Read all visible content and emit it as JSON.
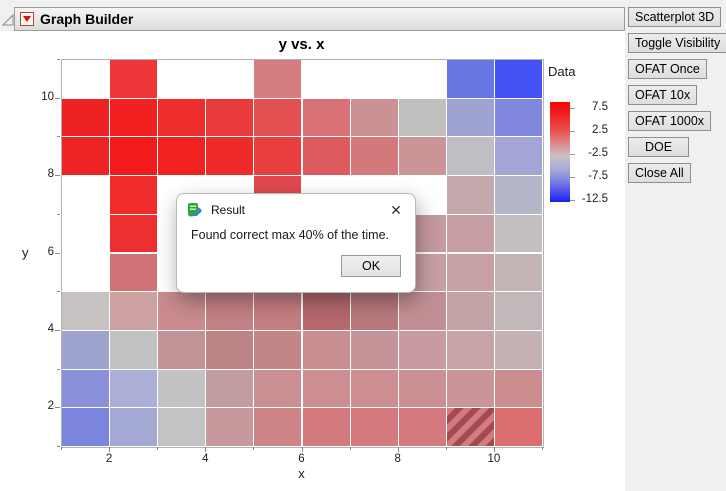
{
  "window": {
    "title": "Graph Builder",
    "side_buttons": [
      "Scatterplot 3D",
      "Toggle Visibility",
      "OFAT Once",
      "OFAT 10x",
      "OFAT 1000x",
      "DOE",
      "Close All"
    ]
  },
  "chart": {
    "title": "y vs. x",
    "xlabel": "x",
    "ylabel": "y",
    "x_ticks": [
      2,
      4,
      6,
      8,
      10
    ],
    "y_ticks": [
      2,
      4,
      6,
      8,
      10
    ]
  },
  "legend": {
    "title": "Data",
    "tick_labels": [
      "7.5",
      "2.5",
      "-2.5",
      "-7.5",
      "-12.5"
    ],
    "top_color": "#fb0300",
    "mid_color": "#c9c2c2",
    "bottom_color": "#1c1cf4"
  },
  "chart_data": {
    "type": "heatmap",
    "title": "y vs. x",
    "xlabel": "x",
    "ylabel": "y",
    "x_axis_range": [
      1,
      11
    ],
    "y_axis_range": [
      1,
      11
    ],
    "grid_cols": 10,
    "grid_rows": 10,
    "rows_top_to_bottom_y": [
      10,
      9,
      8,
      7,
      6,
      5,
      4,
      3,
      2,
      1
    ],
    "cell_colors": [
      [
        "#ffffff",
        "#ee3538",
        "#ffffff",
        "#ffffff",
        "#d47e81",
        "#ffffff",
        "#ffffff",
        "#ffffff",
        "#6775e3",
        "#4252f5"
      ],
      [
        "#ee2222",
        "#f22020",
        "#ee2d2d",
        "#e93b3b",
        "#e25052",
        "#d97276",
        "#cc9194",
        "#c1bfbd",
        "#9fa3d2",
        "#8187dd"
      ],
      [
        "#ee2424",
        "#f21b1b",
        "#f02222",
        "#ee2a2a",
        "#e83e3e",
        "#dd5a5e",
        "#d3787b",
        "#cb9598",
        "#bfbec5",
        "#a2a5d6"
      ],
      [
        "#ffffff",
        "#ef2b2b",
        "#ffffff",
        "#ffffff",
        "#e04a4e",
        "#ffffff",
        "#ffffff",
        "#ffffff",
        "#c4a8ab",
        "#b4b7c7"
      ],
      [
        "#ffffff",
        "#ee2f2f",
        "#ffffff",
        "#e87073",
        "#e87073",
        "#d88a8d",
        "#cf9598",
        "#c59a9e",
        "#c79fa2",
        "#c3bfc0"
      ],
      [
        "#ffffff",
        "#d07276",
        "#ffffff",
        "#d28487",
        "#cf8487",
        "#cc8a8d",
        "#ca9296",
        "#c79fa3",
        "#c7a0a4",
        "#c3b4b6"
      ],
      [
        "#c6c2c2",
        "#cda0a2",
        "#c98b8d",
        "#c38185",
        "#c47e82",
        "#b4696d",
        "#b7797c",
        "#c18f93",
        "#c4a3a6",
        "#c2b7b9"
      ],
      [
        "#9fa4ce",
        "#c2c1c4",
        "#c29395",
        "#bd8487",
        "#c28689",
        "#ca8e92",
        "#c59499",
        "#c79ba0",
        "#c8a3a7",
        "#c4b2b5"
      ],
      [
        "#8a90d9",
        "#abaed7",
        "#c2c2c5",
        "#c29da0",
        "#c98f92",
        "#cd8e91",
        "#cd8e91",
        "#cb9093",
        "#ca9598",
        "#cb8d90"
      ],
      [
        "#7c85de",
        "#a3a8d5",
        "#c3c3c6",
        "#c7999c",
        "#ce8487",
        "#d37a7e",
        "#d57b7f",
        "#d4797d",
        "#d57a7e",
        "#dc6e72"
      ]
    ],
    "highlighted_cell": {
      "x": 9,
      "y": 1,
      "pattern": "diagonal-hatch",
      "stripe_color": "#a04a51",
      "base_color": "#d57a7e"
    }
  },
  "dialog": {
    "title": "Result",
    "message": "Found correct max 40% of the time.",
    "ok_label": "OK",
    "close_glyph": "✕"
  }
}
